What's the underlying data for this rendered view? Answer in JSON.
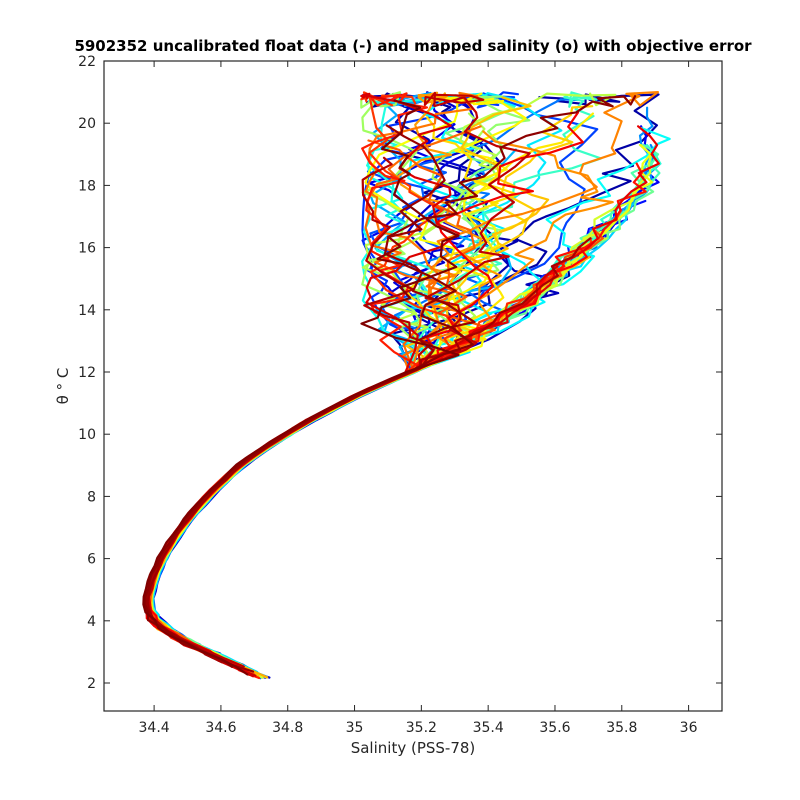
{
  "chart_data": {
    "type": "line",
    "title": "5902352 uncalibrated float data (-) and mapped salinity (o) with objective error",
    "xlabel": "Salinity (PSS-78)",
    "ylabel": "θ ° C",
    "xlim": [
      34.25,
      36.1
    ],
    "ylim": [
      1.1,
      22
    ],
    "xticks": [
      34.4,
      34.6,
      34.8,
      35,
      35.2,
      35.4,
      35.6,
      35.8,
      36
    ],
    "xtick_labels": [
      "34.4",
      "34.6",
      "34.8",
      "35",
      "35.2",
      "35.4",
      "35.6",
      "35.8",
      "36"
    ],
    "yticks": [
      2,
      4,
      6,
      8,
      10,
      12,
      14,
      16,
      18,
      20,
      22
    ],
    "ytick_labels": [
      "2",
      "4",
      "6",
      "8",
      "10",
      "12",
      "14",
      "16",
      "18",
      "20",
      "22"
    ],
    "grid": false,
    "legend": "none",
    "colormap": [
      "#00008f",
      "#0000ff",
      "#0080ff",
      "#00ffff",
      "#80ff80",
      "#ffff00",
      "#ff8000",
      "#ff0000",
      "#800000"
    ],
    "deep_profile": {
      "s": [
        34.73,
        34.66,
        34.6,
        34.5,
        34.43,
        34.4,
        34.385,
        34.385,
        34.4,
        34.43,
        34.47,
        34.52,
        34.58,
        34.66,
        34.74,
        34.86,
        35.02,
        35.3,
        35.55,
        35.9
      ],
      "t": [
        2.15,
        2.5,
        2.8,
        3.3,
        3.75,
        4.05,
        4.4,
        4.8,
        5.4,
        6.1,
        6.8,
        7.5,
        8.2,
        9.0,
        9.6,
        10.4,
        11.3,
        12.6,
        14.3,
        18.0
      ]
    },
    "profile_count": 80,
    "warm_scatter_range": {
      "s": [
        35.0,
        35.95
      ],
      "t": [
        12.0,
        21.0
      ]
    }
  }
}
